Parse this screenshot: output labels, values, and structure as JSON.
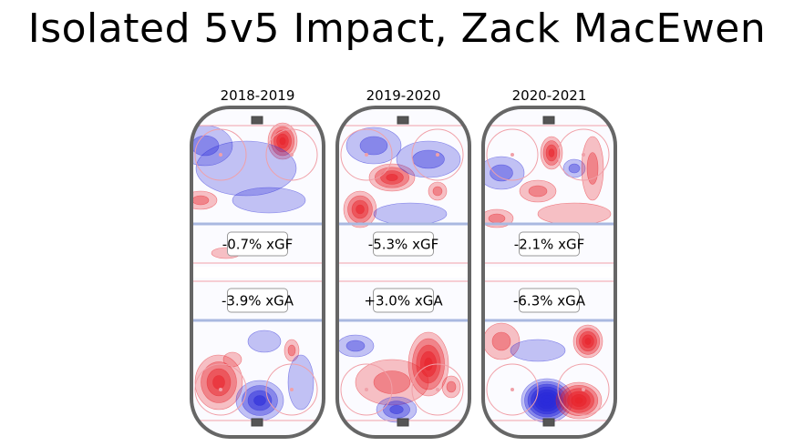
{
  "title": "Isolated 5v5 Impact, Zack MacEwen",
  "chart_data": {
    "type": "heatmap",
    "title": "Isolated 5v5 Impact, Zack MacEwen",
    "player": "Zack MacEwen",
    "colors": {
      "positive": "#e8252c",
      "negative": "#2b2bd9",
      "rink_line": "#666666",
      "blue_line": "#a9b8e0",
      "red_line": "#f0a0a8"
    },
    "seasons": [
      {
        "season": "2018-2019",
        "xGF_label": "-0.7% xGF",
        "xGA_label": "-3.9% xGA",
        "xGF": -0.7,
        "xGA": -3.9
      },
      {
        "season": "2019-2020",
        "xGF_label": "-5.3% xGF",
        "xGA_label": "+3.0% xGA",
        "xGF": -5.3,
        "xGA": 3.0
      },
      {
        "season": "2020-2021",
        "xGF_label": "-2.1% xGF",
        "xGA_label": "-6.3% xGA",
        "xGF": -2.1,
        "xGA": -6.3
      }
    ]
  }
}
